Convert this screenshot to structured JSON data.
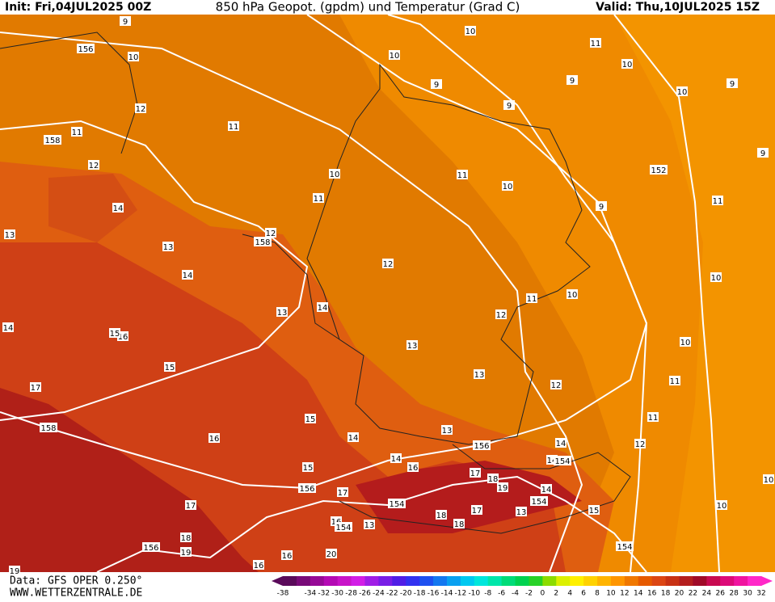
{
  "header": {
    "init": "Init: Fri,04JUL2025 00Z",
    "title": "850 hPa Geopot. (gpdm) und Temperatur (Grad C)",
    "valid": "Valid: Thu,10JUL2025 15Z"
  },
  "footer": {
    "source": "Data: GFS OPER 0.250°",
    "site": "WWW.WETTERZENTRALE.DE"
  },
  "colorbar": {
    "ticks": [
      -38,
      -34,
      -32,
      -30,
      -28,
      -26,
      -24,
      -22,
      -20,
      -18,
      -16,
      -14,
      -12,
      -10,
      -8,
      -6,
      -4,
      -2,
      0,
      2,
      4,
      6,
      8,
      10,
      12,
      14,
      16,
      18,
      20,
      22,
      24,
      26,
      28,
      30,
      32
    ],
    "colors": [
      "#5a0a5a",
      "#780a78",
      "#960a96",
      "#b40ab4",
      "#c814c8",
      "#d21ee6",
      "#a01ee6",
      "#781ee6",
      "#501ee6",
      "#3232f0",
      "#1e50f0",
      "#1478f0",
      "#0aa0f0",
      "#00c8f0",
      "#00e6dc",
      "#00e6aa",
      "#00dc78",
      "#00d250",
      "#28d228",
      "#8cdc00",
      "#dcf000",
      "#fff000",
      "#ffd200",
      "#ffb400",
      "#ff9600",
      "#f07800",
      "#e65a00",
      "#dc4614",
      "#c83214",
      "#b41e1e",
      "#a00a28",
      "#c80a50",
      "#dc0a78",
      "#f014a0",
      "#ff28c8"
    ]
  },
  "isotherm_labels": [
    9,
    10,
    10,
    10,
    11,
    10,
    9,
    9,
    9,
    9,
    10,
    12,
    11,
    11,
    9,
    12,
    10,
    11,
    10,
    11,
    9,
    11,
    14,
    13,
    12,
    13,
    12,
    14,
    10,
    10,
    14,
    11,
    13,
    12,
    14,
    16,
    10,
    13,
    15,
    13,
    12,
    11,
    17,
    11,
    15,
    13,
    16,
    14,
    12,
    14,
    14,
    15,
    16,
    17,
    14,
    18,
    17,
    19,
    14,
    17,
    17,
    18,
    13,
    15,
    18,
    16,
    13,
    18,
    10,
    10,
    19,
    20,
    16,
    16,
    19,
    15
  ],
  "height_labels": [
    156,
    158,
    152,
    158,
    158,
    156,
    154,
    156,
    154,
    154,
    154,
    156,
    154
  ]
}
